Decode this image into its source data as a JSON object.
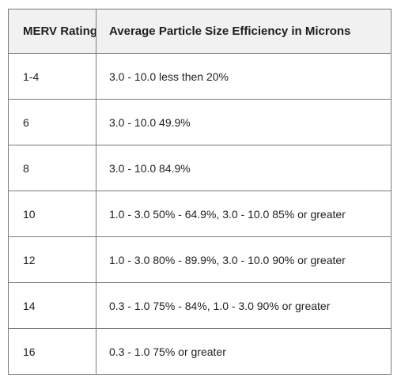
{
  "table": {
    "headers": {
      "rating": "MERV Rating",
      "efficiency": "Average Particle Size Efficiency in Microns"
    },
    "rows": [
      {
        "rating": "1-4",
        "efficiency": "3.0 - 10.0 less then 20%"
      },
      {
        "rating": "6",
        "efficiency": "3.0 - 10.0 49.9%"
      },
      {
        "rating": "8",
        "efficiency": "3.0 - 10.0 84.9%"
      },
      {
        "rating": "10",
        "efficiency": "1.0 - 3.0 50% - 64.9%, 3.0 - 10.0 85% or greater"
      },
      {
        "rating": "12",
        "efficiency": "1.0 - 3.0 80% - 89.9%, 3.0 - 10.0 90% or greater"
      },
      {
        "rating": "14",
        "efficiency": "0.3 - 1.0 75% - 84%, 1.0 - 3.0 90% or greater"
      },
      {
        "rating": "16",
        "efficiency": "0.3 - 1.0 75% or greater"
      }
    ]
  },
  "chart_data": {
    "type": "table",
    "columns": [
      "MERV Rating",
      "Average Particle Size Efficiency in Microns"
    ],
    "rows": [
      [
        "1-4",
        "3.0 - 10.0 less then 20%"
      ],
      [
        "6",
        "3.0 - 10.0 49.9%"
      ],
      [
        "8",
        "3.0 - 10.0 84.9%"
      ],
      [
        "10",
        "1.0 - 3.0 50% - 64.9%, 3.0 - 10.0 85% or greater"
      ],
      [
        "12",
        "1.0 - 3.0 80% - 89.9%, 3.0 - 10.0 90% or greater"
      ],
      [
        "14",
        "0.3 - 1.0 75% - 84%, 1.0 - 3.0 90% or greater"
      ],
      [
        "16",
        "0.3 - 1.0 75% or greater"
      ]
    ]
  }
}
